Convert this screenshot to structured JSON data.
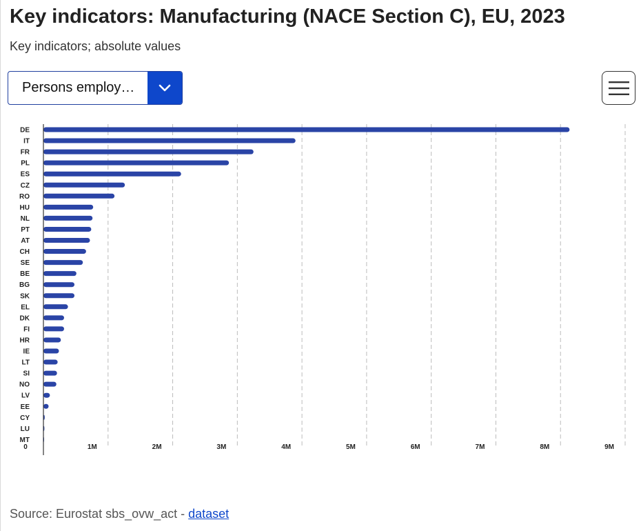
{
  "title": "Key indicators: Manufacturing (NACE Section C), EU, 2023",
  "subtitle": "Key indicators; absolute values",
  "indicator_select": {
    "value": "Persons employ…"
  },
  "menu": {
    "icon": "hamburger-menu-icon"
  },
  "source": {
    "prefix": "Source: Eurostat sbs_ovw_act - ",
    "link_text": "dataset"
  },
  "colors": {
    "bar": "#2a44a6",
    "grid": "#bbbbbb",
    "accent": "#0e47cb"
  },
  "chart_data": {
    "type": "bar",
    "orientation": "horizontal",
    "title": "",
    "xlabel": "",
    "ylabel": "",
    "xlim": [
      0,
      9000000
    ],
    "ticks": [
      {
        "value": 0,
        "label": "0"
      },
      {
        "value": 1000000,
        "label": "1M"
      },
      {
        "value": 2000000,
        "label": "2M"
      },
      {
        "value": 3000000,
        "label": "3M"
      },
      {
        "value": 4000000,
        "label": "4M"
      },
      {
        "value": 5000000,
        "label": "5M"
      },
      {
        "value": 6000000,
        "label": "6M"
      },
      {
        "value": 7000000,
        "label": "7M"
      },
      {
        "value": 8000000,
        "label": "8M"
      },
      {
        "value": 9000000,
        "label": "9M"
      }
    ],
    "grid": true,
    "categories": [
      "DE",
      "IT",
      "FR",
      "PL",
      "ES",
      "CZ",
      "RO",
      "HU",
      "NL",
      "PT",
      "AT",
      "CH",
      "SE",
      "BE",
      "BG",
      "SK",
      "EL",
      "DK",
      "FI",
      "HR",
      "IE",
      "LT",
      "SI",
      "NO",
      "LV",
      "EE",
      "CY",
      "LU",
      "MT"
    ],
    "values": [
      8140000,
      3900000,
      3250000,
      2870000,
      2130000,
      1260000,
      1100000,
      770000,
      760000,
      740000,
      720000,
      660000,
      610000,
      510000,
      480000,
      480000,
      380000,
      320000,
      320000,
      270000,
      240000,
      220000,
      210000,
      200000,
      100000,
      80000,
      20000,
      15000,
      5000
    ]
  }
}
